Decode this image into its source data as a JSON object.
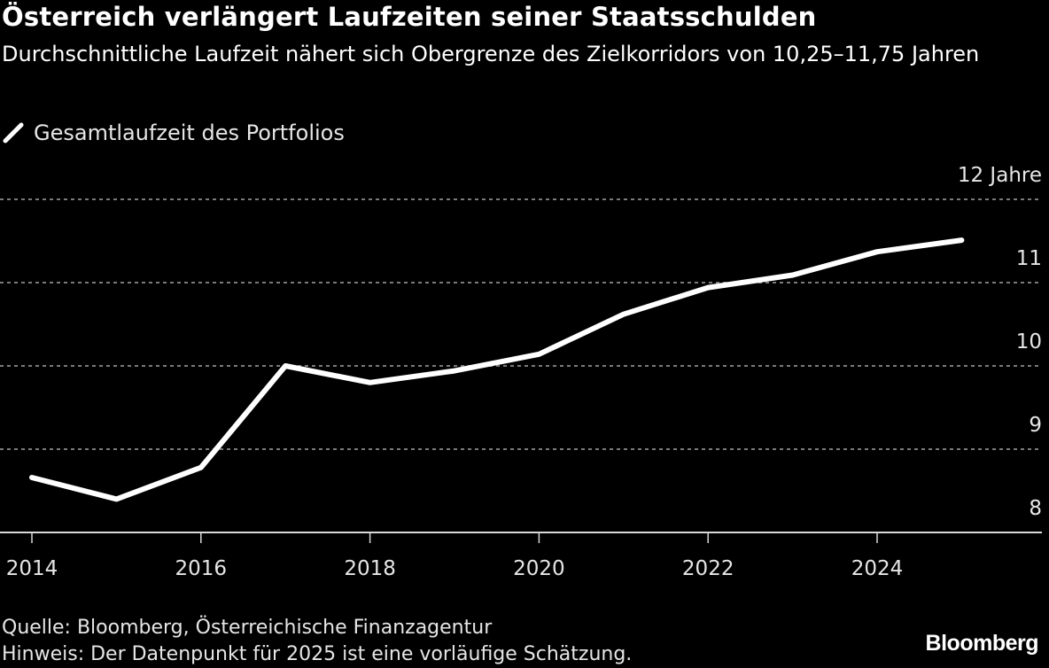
{
  "header": {
    "title": "Österreich verlängert Laufzeiten seiner Staatsschulden",
    "subtitle": "Durchschnittliche Laufzeit nähert sich Obergrenze des Zielkorridors von 10,25–11,75 Jahren"
  },
  "legend": {
    "items": [
      {
        "label": "Gesamtlaufzeit des Portfolios",
        "color": "#ffffff",
        "icon": "line-swatch-icon"
      }
    ]
  },
  "footer": {
    "source": "Quelle: Bloomberg, Österreichische Finanzagentur",
    "note": "Hinweis: Der Datenpunkt für 2025 ist eine vorläufige Schätzung.",
    "brand": "Bloomberg"
  },
  "chart_data": {
    "type": "line",
    "title": "Österreich verlängert Laufzeiten seiner Staatsschulden",
    "subtitle": "Durchschnittliche Laufzeit nähert sich Obergrenze des Zielkorridors von 10,25–11,75 Jahren",
    "xlabel": "",
    "ylabel": "Jahre",
    "x": [
      2014,
      2015,
      2016,
      2017,
      2018,
      2019,
      2020,
      2021,
      2022,
      2023,
      2024,
      2025
    ],
    "series": [
      {
        "name": "Gesamtlaufzeit des Portfolios",
        "color": "#ffffff",
        "values": [
          8.66,
          8.4,
          8.78,
          10.0,
          9.8,
          9.94,
          10.14,
          10.62,
          10.94,
          11.09,
          11.37,
          11.51
        ]
      }
    ],
    "xlim": [
      2014,
      2025.9
    ],
    "ylim": [
      8,
      12
    ],
    "x_ticks": [
      2014,
      2016,
      2018,
      2020,
      2022,
      2024
    ],
    "x_tick_labels": [
      "2014",
      "2016",
      "2018",
      "2020",
      "2022",
      "2024"
    ],
    "y_ticks": [
      8,
      9,
      10,
      11,
      12
    ],
    "y_tick_labels": [
      "8",
      "9",
      "10",
      "11",
      "12 Jahre"
    ],
    "grid": "horizontal-dotted",
    "legend_position": "top-left",
    "axis_color": "#d9d9d9",
    "grid_color": "#7a7a7a"
  }
}
